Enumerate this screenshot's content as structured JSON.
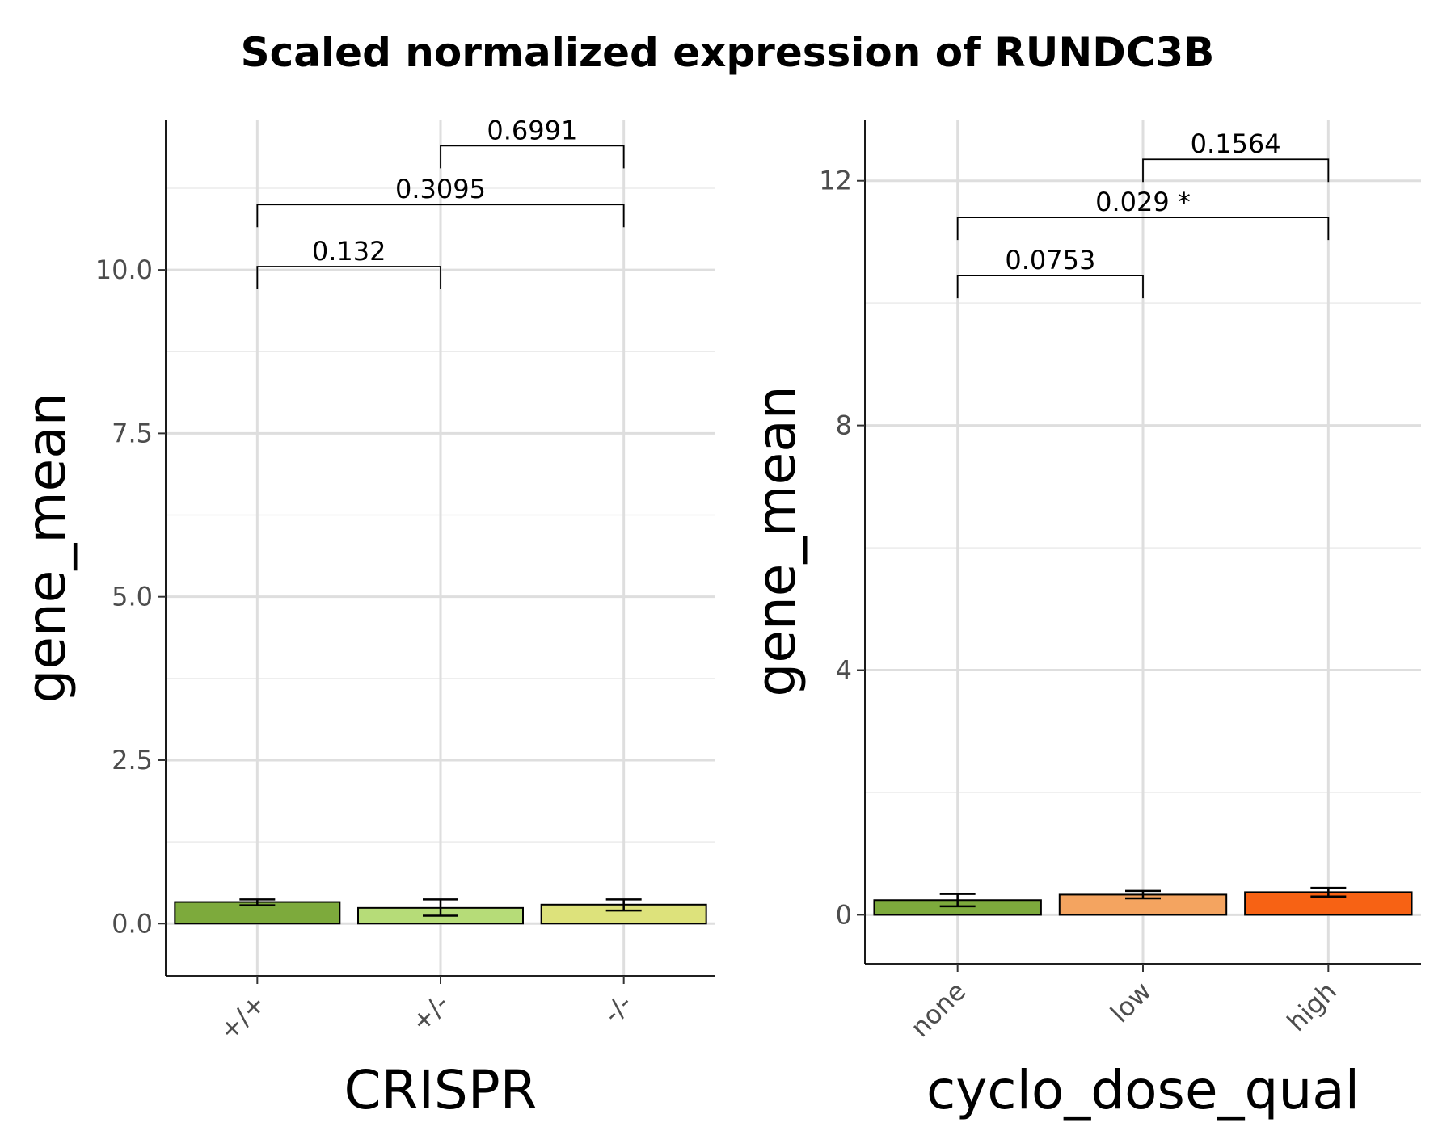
{
  "title": "Scaled normalized expression of RUNDC3B",
  "chart_data": [
    {
      "type": "bar",
      "xlabel": "CRISPR",
      "ylabel": "gene_mean",
      "categories": [
        "+/+",
        "+/-",
        "-/-"
      ],
      "values": [
        0.33,
        0.24,
        0.29
      ],
      "error_bars": [
        [
          0.28,
          0.37
        ],
        [
          0.12,
          0.37
        ],
        [
          0.2,
          0.37
        ]
      ],
      "colors": [
        "#7daa3c",
        "#b6dc78",
        "#dde27b"
      ],
      "ylim": [
        -0.8,
        12.3
      ],
      "yticks": [
        "0.0",
        "2.5",
        "5.0",
        "7.5",
        "10.0"
      ],
      "ytick_values": [
        0,
        2.5,
        5,
        7.5,
        10
      ],
      "grid": true,
      "comparisons": [
        {
          "from": 0,
          "to": 1,
          "label": "0.132",
          "y": 10.05
        },
        {
          "from": 0,
          "to": 2,
          "label": "0.3095",
          "y": 11.0
        },
        {
          "from": 1,
          "to": 2,
          "label": "0.6991",
          "y": 11.9
        }
      ]
    },
    {
      "type": "bar",
      "xlabel": "cyclo_dose_qual",
      "ylabel": "gene_mean",
      "categories": [
        "none",
        "low",
        "high"
      ],
      "values": [
        0.24,
        0.33,
        0.37
      ],
      "error_bars": [
        [
          0.14,
          0.34
        ],
        [
          0.27,
          0.39
        ],
        [
          0.3,
          0.44
        ]
      ],
      "colors": [
        "#7daa3c",
        "#f4a460",
        "#f76214"
      ],
      "ylim": [
        -0.8,
        13.0
      ],
      "yticks": [
        "0",
        "4",
        "8",
        "12"
      ],
      "ytick_values": [
        0,
        4,
        8,
        12
      ],
      "grid": true,
      "comparisons": [
        {
          "from": 0,
          "to": 1,
          "label": "0.0753",
          "y": 10.45
        },
        {
          "from": 0,
          "to": 2,
          "label": "0.029 *",
          "y": 11.4
        },
        {
          "from": 1,
          "to": 2,
          "label": "0.1564",
          "y": 12.35
        }
      ]
    }
  ]
}
